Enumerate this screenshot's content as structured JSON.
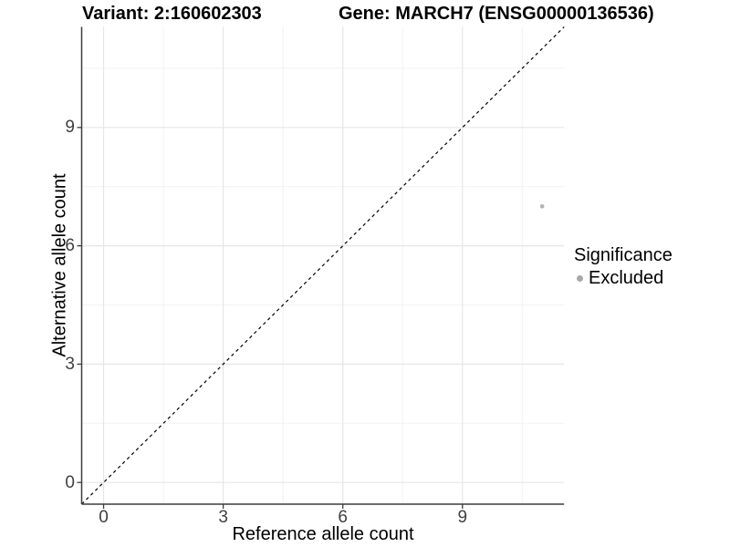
{
  "figure": {
    "title_left": "Variant: 2:160602303",
    "title_right": "Gene: MARCH7 (ENSG00000136536)"
  },
  "axes": {
    "x_label": "Reference allele count",
    "y_label": "Alternative allele count"
  },
  "legend": {
    "title": "Significance",
    "items": [
      {
        "label": "Excluded",
        "color": "#a9a9a9"
      }
    ]
  },
  "chart_data": {
    "type": "scatter",
    "title": "Variant: 2:160602303 | Gene: MARCH7 (ENSG00000136536)",
    "xlabel": "Reference allele count",
    "ylabel": "Alternative allele count",
    "xlim": [
      -0.55,
      11.55
    ],
    "ylim": [
      -0.55,
      11.55
    ],
    "x_ticks": [
      "0",
      "3",
      "6",
      "9"
    ],
    "x_tick_values": [
      0,
      3,
      6,
      9
    ],
    "y_ticks": [
      "0",
      "3",
      "6",
      "9"
    ],
    "y_tick_values": [
      0,
      3,
      6,
      9
    ],
    "minor_tick_values": [
      1.5,
      4.5,
      7.5,
      10.5
    ],
    "grid": "major+minor",
    "legend_position": "right",
    "series": [
      {
        "name": "Excluded",
        "color": "#b3b3b3",
        "point_radius": 2.3,
        "points": [
          {
            "x": 11,
            "y": 7
          }
        ]
      }
    ],
    "reference_line": {
      "kind": "identity",
      "style": "dashed",
      "color": "#000000",
      "dash": "3.5,3.5"
    },
    "style": {
      "background": "#ffffff",
      "grid_major_color": "#e6e6e6",
      "grid_minor_color": "#f2f2f2",
      "axis_line_color": "#3c3c3c",
      "tick_mark_color": "#3c3c3c",
      "tick_label_color": "#404040"
    }
  }
}
